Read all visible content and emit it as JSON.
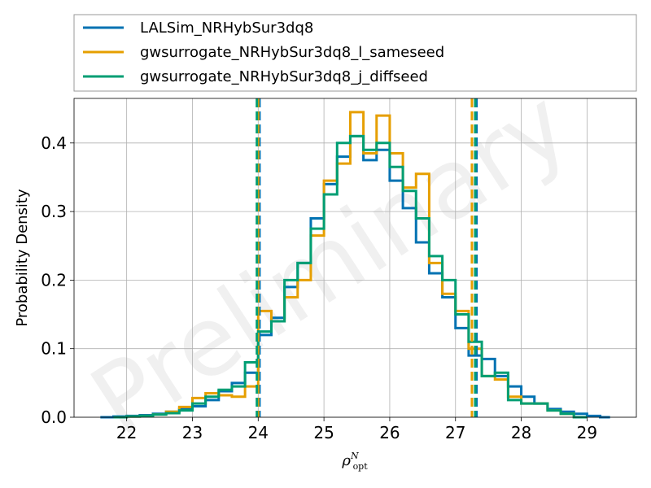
{
  "chart_data": {
    "type": "histogram",
    "xlabel_base": "ρ",
    "xlabel_sup": "N",
    "xlabel_sub": "opt",
    "ylabel": "Probability Density",
    "xlim": [
      21.2,
      29.75
    ],
    "ylim": [
      0,
      0.465
    ],
    "xticks": [
      22,
      23,
      24,
      25,
      26,
      27,
      28,
      29
    ],
    "yticks": [
      0.0,
      0.1,
      0.2,
      0.3,
      0.4
    ],
    "ytick_labels": [
      "0.0",
      "0.1",
      "0.2",
      "0.3",
      "0.4"
    ],
    "grid": true,
    "legend_position": "above plot",
    "watermark": "Preliminary",
    "series": [
      {
        "name": "LALSim_NRHybSur3dq8",
        "color": "#0072B2",
        "bins": [
          [
            21.6,
            21.8,
            0.0
          ],
          [
            21.8,
            22.0,
            0.001
          ],
          [
            22.0,
            22.2,
            0.002
          ],
          [
            22.2,
            22.4,
            0.003
          ],
          [
            22.4,
            22.6,
            0.005
          ],
          [
            22.6,
            22.8,
            0.008
          ],
          [
            22.8,
            23.0,
            0.012
          ],
          [
            23.0,
            23.2,
            0.016
          ],
          [
            23.2,
            23.4,
            0.025
          ],
          [
            23.4,
            23.6,
            0.038
          ],
          [
            23.6,
            23.8,
            0.05
          ],
          [
            23.8,
            24.0,
            0.065
          ],
          [
            24.0,
            24.2,
            0.12
          ],
          [
            24.2,
            24.4,
            0.145
          ],
          [
            24.4,
            24.6,
            0.19
          ],
          [
            24.6,
            24.8,
            0.225
          ],
          [
            24.8,
            25.0,
            0.29
          ],
          [
            25.0,
            25.2,
            0.34
          ],
          [
            25.2,
            25.4,
            0.38
          ],
          [
            25.4,
            25.6,
            0.41
          ],
          [
            25.6,
            25.8,
            0.375
          ],
          [
            25.8,
            26.0,
            0.39
          ],
          [
            26.0,
            26.2,
            0.345
          ],
          [
            26.2,
            26.4,
            0.305
          ],
          [
            26.4,
            26.6,
            0.255
          ],
          [
            26.6,
            26.8,
            0.21
          ],
          [
            26.8,
            27.0,
            0.175
          ],
          [
            27.0,
            27.2,
            0.13
          ],
          [
            27.2,
            27.4,
            0.09
          ],
          [
            27.4,
            27.6,
            0.085
          ],
          [
            27.6,
            27.8,
            0.06
          ],
          [
            27.8,
            28.0,
            0.045
          ],
          [
            28.0,
            28.2,
            0.03
          ],
          [
            28.2,
            28.4,
            0.02
          ],
          [
            28.4,
            28.6,
            0.012
          ],
          [
            28.6,
            28.8,
            0.008
          ],
          [
            28.8,
            29.0,
            0.005
          ],
          [
            29.0,
            29.2,
            0.002
          ],
          [
            29.2,
            29.35,
            0.0
          ]
        ],
        "ci_low": 24.02,
        "ci_high": 27.32
      },
      {
        "name": "gwsurrogate_NRHybSur3dq8_l_sameseed",
        "color": "#E69F00",
        "bins": [
          [
            21.8,
            22.0,
            0.0
          ],
          [
            22.0,
            22.2,
            0.001
          ],
          [
            22.2,
            22.4,
            0.002
          ],
          [
            22.4,
            22.6,
            0.004
          ],
          [
            22.6,
            22.8,
            0.008
          ],
          [
            22.8,
            23.0,
            0.015
          ],
          [
            23.0,
            23.2,
            0.028
          ],
          [
            23.2,
            23.4,
            0.035
          ],
          [
            23.4,
            23.6,
            0.032
          ],
          [
            23.6,
            23.8,
            0.03
          ],
          [
            23.8,
            24.0,
            0.045
          ],
          [
            24.0,
            24.2,
            0.155
          ],
          [
            24.2,
            24.4,
            0.14
          ],
          [
            24.4,
            24.6,
            0.175
          ],
          [
            24.6,
            24.8,
            0.2
          ],
          [
            24.8,
            25.0,
            0.265
          ],
          [
            25.0,
            25.2,
            0.345
          ],
          [
            25.2,
            25.4,
            0.37
          ],
          [
            25.4,
            25.6,
            0.445
          ],
          [
            25.6,
            25.8,
            0.385
          ],
          [
            25.8,
            26.0,
            0.44
          ],
          [
            26.0,
            26.2,
            0.385
          ],
          [
            26.2,
            26.4,
            0.335
          ],
          [
            26.4,
            26.6,
            0.355
          ],
          [
            26.6,
            26.8,
            0.225
          ],
          [
            26.8,
            27.0,
            0.18
          ],
          [
            27.0,
            27.2,
            0.155
          ],
          [
            27.2,
            27.4,
            0.1
          ],
          [
            27.4,
            27.6,
            0.06
          ],
          [
            27.6,
            27.8,
            0.055
          ],
          [
            27.8,
            28.0,
            0.03
          ],
          [
            28.0,
            28.2,
            0.02
          ],
          [
            28.2,
            28.4,
            0.02
          ],
          [
            28.4,
            28.6,
            0.01
          ],
          [
            28.6,
            28.8,
            0.005
          ],
          [
            28.8,
            29.0,
            0.0
          ]
        ],
        "ci_low": 24.0,
        "ci_high": 27.25
      },
      {
        "name": "gwsurrogate_NRHybSur3dq8_j_diffseed",
        "color": "#009E73",
        "bins": [
          [
            21.8,
            22.0,
            0.0
          ],
          [
            22.0,
            22.2,
            0.001
          ],
          [
            22.2,
            22.4,
            0.002
          ],
          [
            22.4,
            22.6,
            0.004
          ],
          [
            22.6,
            22.8,
            0.006
          ],
          [
            22.8,
            23.0,
            0.01
          ],
          [
            23.0,
            23.2,
            0.02
          ],
          [
            23.2,
            23.4,
            0.03
          ],
          [
            23.4,
            23.6,
            0.04
          ],
          [
            23.6,
            23.8,
            0.045
          ],
          [
            23.8,
            24.0,
            0.08
          ],
          [
            24.0,
            24.2,
            0.125
          ],
          [
            24.2,
            24.4,
            0.14
          ],
          [
            24.4,
            24.6,
            0.2
          ],
          [
            24.6,
            24.8,
            0.225
          ],
          [
            24.8,
            25.0,
            0.275
          ],
          [
            25.0,
            25.2,
            0.325
          ],
          [
            25.2,
            25.4,
            0.4
          ],
          [
            25.4,
            25.6,
            0.41
          ],
          [
            25.6,
            25.8,
            0.39
          ],
          [
            25.8,
            26.0,
            0.4
          ],
          [
            26.0,
            26.2,
            0.365
          ],
          [
            26.2,
            26.4,
            0.33
          ],
          [
            26.4,
            26.6,
            0.29
          ],
          [
            26.6,
            26.8,
            0.235
          ],
          [
            26.8,
            27.0,
            0.2
          ],
          [
            27.0,
            27.2,
            0.15
          ],
          [
            27.2,
            27.4,
            0.11
          ],
          [
            27.4,
            27.6,
            0.06
          ],
          [
            27.6,
            27.8,
            0.065
          ],
          [
            27.8,
            28.0,
            0.025
          ],
          [
            28.0,
            28.2,
            0.02
          ],
          [
            28.2,
            28.4,
            0.02
          ],
          [
            28.4,
            28.6,
            0.01
          ],
          [
            28.6,
            28.8,
            0.005
          ],
          [
            28.8,
            29.0,
            0.0
          ]
        ],
        "ci_low": 23.98,
        "ci_high": 27.3
      }
    ]
  }
}
